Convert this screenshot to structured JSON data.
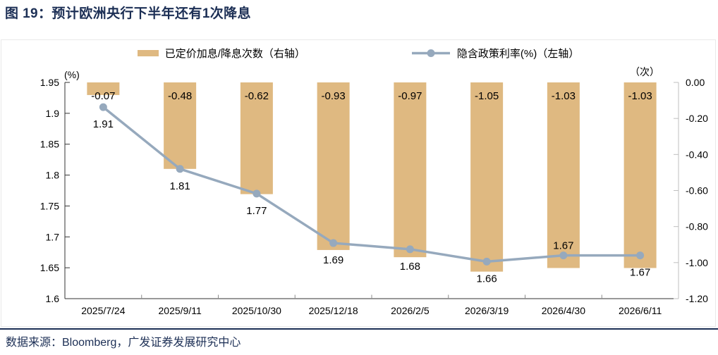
{
  "title": "图 19：预计欧洲央行下半年还有1次降息",
  "footer": {
    "source": "数据来源：Bloomberg，广发证券发展研究中心"
  },
  "legend": {
    "bar_label": "已定价加息/降息次数（右轴）",
    "line_label": "隐含政策利率(%)（左轴）"
  },
  "colors": {
    "bar": "#DFB981",
    "line": "#96A9BD",
    "navy": "#1C2F55",
    "axis_dark": "#333333",
    "axis_light": "#BFBFBF",
    "tick_gray": "#8C8C8C",
    "frame_border": "#E9E9E9",
    "label": "#000000"
  },
  "chart_data": {
    "type": "bar+line combo, dual axis",
    "grid": false,
    "legend_position": "top",
    "categories": [
      "2025/7/24",
      "2025/9/11",
      "2025/10/30",
      "2025/12/18",
      "2026/2/5",
      "2026/3/19",
      "2026/4/30",
      "2026/6/11"
    ],
    "series": [
      {
        "name": "已定价加息/降息次数（右轴）",
        "type": "bar",
        "axis": "right",
        "values": [
          -0.07,
          -0.48,
          -0.62,
          -0.93,
          -0.97,
          -1.05,
          -1.03,
          -1.03
        ]
      },
      {
        "name": "隐含政策利率(%)（左轴）",
        "type": "line",
        "axis": "left",
        "values": [
          1.91,
          1.81,
          1.77,
          1.69,
          1.68,
          1.66,
          1.67,
          1.67
        ],
        "label_positions": [
          "below",
          "below",
          "below",
          "below",
          "below",
          "below",
          "above",
          "below"
        ]
      }
    ],
    "left_axis": {
      "unit": "(%)",
      "min": 1.6,
      "max": 1.95,
      "step": 0.05,
      "ticks": [
        "1.95",
        "1.9",
        "1.85",
        "1.8",
        "1.75",
        "1.7",
        "1.65",
        "1.6"
      ]
    },
    "right_axis": {
      "unit": "（次）",
      "min": -1.2,
      "max": 0,
      "step": 0.2,
      "ticks": [
        "0.00",
        "-0.20",
        "-0.40",
        "-0.60",
        "-0.80",
        "-1.00",
        "-1.20"
      ]
    }
  }
}
